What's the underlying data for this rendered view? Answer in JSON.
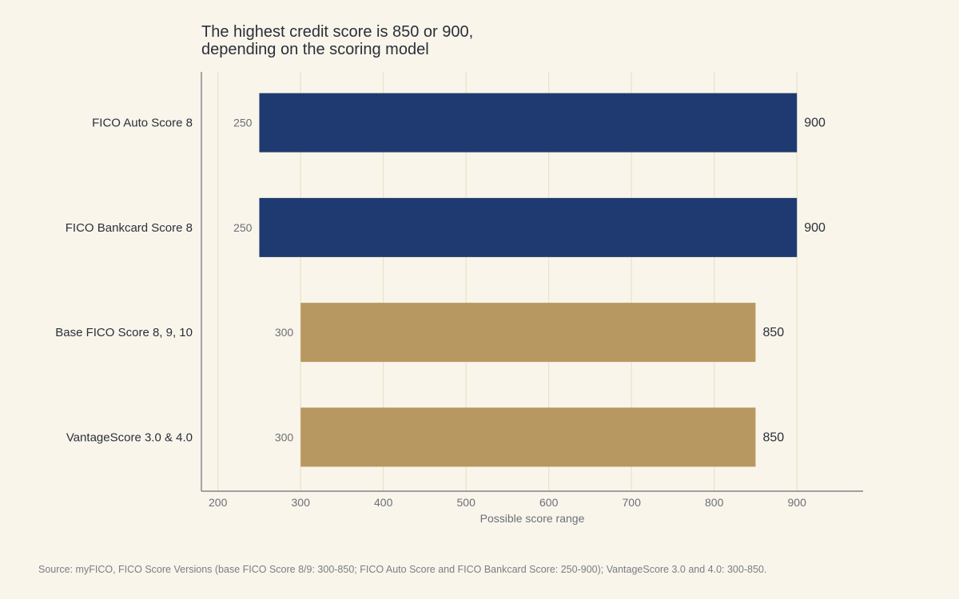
{
  "chart_data": {
    "type": "bar",
    "orientation": "horizontal",
    "title_lines": [
      "The highest credit score is 850 or 900,",
      "depending on the scoring model"
    ],
    "xlabel": "Possible score range",
    "ylabel": "",
    "xlim": [
      180,
      980
    ],
    "xticks": [
      200,
      300,
      400,
      500,
      600,
      700,
      800,
      900
    ],
    "grid": true,
    "categories": [
      "FICO Auto Score 8",
      "FICO Bankcard Score 8",
      "Base FICO Score 8, 9, 10",
      "VantageScore 3.0 & 4.0"
    ],
    "ranges": [
      {
        "category": "FICO Auto Score 8",
        "min": 250,
        "max": 900,
        "color": "#1f3a70"
      },
      {
        "category": "FICO Bankcard Score 8",
        "min": 250,
        "max": 900,
        "color": "#1f3a70"
      },
      {
        "category": "Base FICO Score 8, 9, 10",
        "min": 300,
        "max": 850,
        "color": "#b89861"
      },
      {
        "category": "VantageScore 3.0 & 4.0",
        "min": 300,
        "max": 850,
        "color": "#b89861"
      }
    ],
    "source": "Source: myFICO, FICO Score Versions (base FICO Score 8/9: 300-850; FICO Auto Score and FICO Bankcard Score: 250-900); VantageScore 3.0 and 4.0: 300-850."
  },
  "colors": {
    "background": "#f9f5ea",
    "grid": "#e6dfc4",
    "axis": "#6b6f78"
  }
}
